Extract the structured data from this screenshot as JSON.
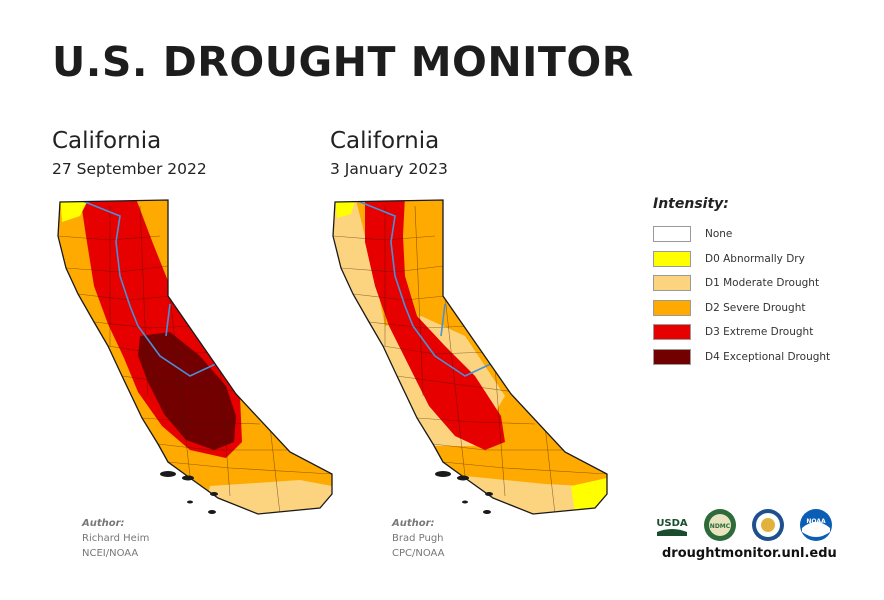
{
  "header": {
    "title": "U.S. DROUGHT MONITOR"
  },
  "maps": [
    {
      "state": "California",
      "date": "27 September 2022",
      "author_label": "Author:",
      "author_name": "Richard Heim",
      "author_org": "NCEI/NOAA"
    },
    {
      "state": "California",
      "date": "3 January 2023",
      "author_label": "Author:",
      "author_name": "Brad Pugh",
      "author_org": "CPC/NOAA"
    }
  ],
  "legend": {
    "title": "Intensity:",
    "items": [
      {
        "label": "None",
        "color": "#ffffff"
      },
      {
        "label": "D0 Abnormally Dry",
        "color": "#ffff00"
      },
      {
        "label": "D1 Moderate Drought",
        "color": "#fcd37f"
      },
      {
        "label": "D2 Severe Drought",
        "color": "#ffaa00"
      },
      {
        "label": "D3 Extreme Drought",
        "color": "#e60000"
      },
      {
        "label": "D4 Exceptional Drought",
        "color": "#730000"
      }
    ]
  },
  "logos": [
    {
      "icon": "usda-logo-icon",
      "text": "USDA"
    },
    {
      "icon": "ndmc-logo-icon",
      "text": "NDMC"
    },
    {
      "icon": "doc-seal-icon",
      "text": ""
    },
    {
      "icon": "noaa-logo-icon",
      "text": "NOAA"
    }
  ],
  "footer": {
    "website": "droughtmonitor.unl.edu"
  }
}
